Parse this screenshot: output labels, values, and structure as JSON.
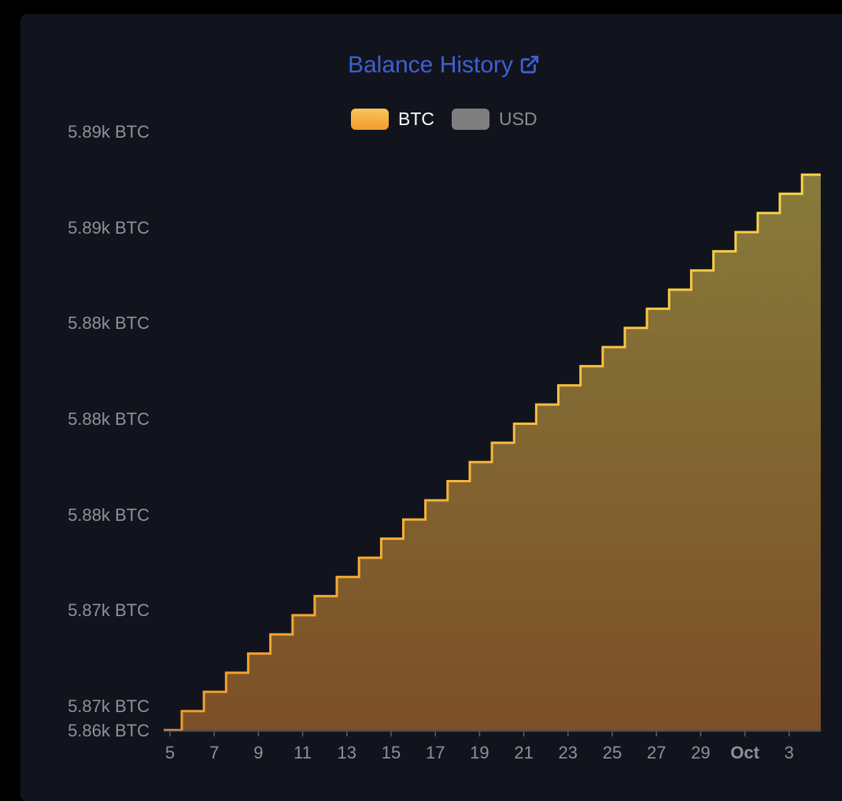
{
  "header": {
    "title": "Balance History",
    "title_color": "#3f5fd6"
  },
  "legend": {
    "items": [
      {
        "label": "BTC",
        "color": "#f7b23a",
        "active": true
      },
      {
        "label": "USD",
        "color": "#7f7f7f",
        "active": false
      }
    ]
  },
  "chart_data": {
    "type": "area",
    "step": true,
    "title": "Balance History",
    "xlabel": "",
    "ylabel": "",
    "grid": false,
    "legend_position": "top-center",
    "x_tick_labels": [
      "5",
      "7",
      "9",
      "11",
      "13",
      "15",
      "17",
      "19",
      "21",
      "23",
      "25",
      "27",
      "29",
      "Oct",
      "3"
    ],
    "y_tick_labels": [
      "5.89k BTC",
      "5.89k BTC",
      "5.88k BTC",
      "5.88k BTC",
      "5.88k BTC",
      "5.87k BTC",
      "5.87k BTC",
      "5.86k BTC"
    ],
    "ylim": [
      5862.5,
      5891.5
    ],
    "series": [
      {
        "name": "BTC",
        "color": "#f7b23a",
        "fill_top": "#877b3b",
        "fill_bottom": "#7c4f27",
        "x": [
          "Sep 5",
          "Sep 6",
          "Sep 7",
          "Sep 8",
          "Sep 9",
          "Sep 10",
          "Sep 11",
          "Sep 12",
          "Sep 13",
          "Sep 14",
          "Sep 15",
          "Sep 16",
          "Sep 17",
          "Sep 18",
          "Sep 19",
          "Sep 20",
          "Sep 21",
          "Sep 22",
          "Sep 23",
          "Sep 24",
          "Sep 25",
          "Sep 26",
          "Sep 27",
          "Sep 28",
          "Sep 29",
          "Sep 30",
          "Oct 1",
          "Oct 2",
          "Oct 3",
          "Oct 4"
        ],
        "values": [
          5862.5,
          5863.5,
          5864.5,
          5865.5,
          5866.5,
          5867.5,
          5868.5,
          5869.5,
          5870.5,
          5871.5,
          5872.5,
          5873.5,
          5874.5,
          5875.5,
          5876.5,
          5877.5,
          5878.5,
          5879.5,
          5880.5,
          5881.5,
          5882.5,
          5883.5,
          5884.5,
          5885.5,
          5886.5,
          5887.5,
          5888.5,
          5889.5,
          5890.5,
          5891.5
        ]
      }
    ]
  }
}
